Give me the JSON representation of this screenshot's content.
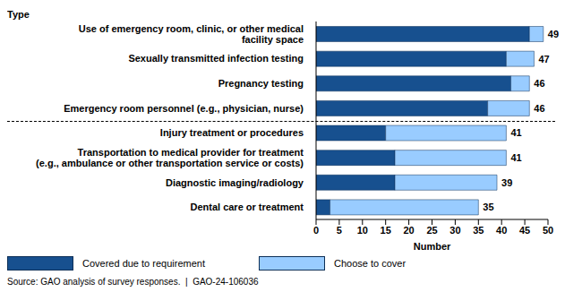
{
  "chart_data": {
    "type": "bar",
    "orientation": "horizontal",
    "stacked": true,
    "category_axis_title": "Type",
    "xlabel": "Number",
    "source": "Source: GAO analysis of survey responses.  |  GAO-24-106036",
    "categories": [
      "Use of emergency room, clinic, or other medical facility space",
      "Sexually transmitted infection testing",
      "Pregnancy testing",
      "Emergency room personnel (e.g., physician, nurse)",
      "Injury treatment or procedures",
      "Transportation to medical provider for treatment (e.g., ambulance or other transportation service or costs)",
      "Diagnostic imaging/radiology",
      "Dental care or treatment"
    ],
    "series": [
      {
        "name": "Covered due to requirement",
        "color": "#17508f",
        "values": [
          46,
          41,
          42,
          37,
          15,
          17,
          17,
          3
        ]
      },
      {
        "name": "Choose to cover",
        "color": "#99ccff",
        "values": [
          3,
          6,
          4,
          9,
          26,
          24,
          22,
          32
        ]
      }
    ],
    "totals": [
      49,
      47,
      46,
      46,
      41,
      41,
      39,
      35
    ],
    "xlim": [
      0,
      50
    ],
    "xticks": [
      0,
      5,
      10,
      15,
      20,
      25,
      30,
      35,
      40,
      45,
      50
    ],
    "legend": "bottom"
  }
}
